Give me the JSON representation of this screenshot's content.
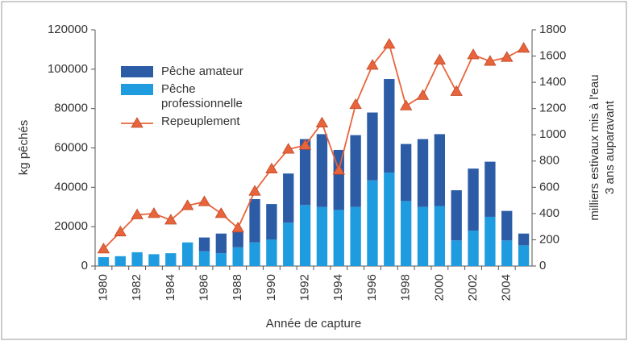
{
  "chart_data": {
    "type": "stacked_bar_line",
    "x_label": "Année de capture",
    "y_label": "kg pêchés",
    "y2_label": [
      "milliers estivaux mis à l'eau",
      "3 ans auparavant"
    ],
    "categories": [
      "1980",
      null,
      "1982",
      null,
      "1984",
      null,
      "1986",
      null,
      "1988",
      null,
      "1990",
      null,
      "1992",
      null,
      "1994",
      null,
      "1996",
      null,
      "1998",
      null,
      "2000",
      null,
      "2002",
      null,
      "2004",
      null
    ],
    "series": [
      {
        "name": "Pêche professionnelle",
        "color": "#1f9be0",
        "values": [
          4500,
          5000,
          7000,
          6000,
          6500,
          12000,
          7500,
          6500,
          9500,
          12000,
          13500,
          22000,
          31000,
          30000,
          28500,
          30000,
          43500,
          47500,
          33000,
          30000,
          30500,
          13000,
          18000,
          25000,
          13000,
          10500
        ]
      },
      {
        "name": "Pêche amateur",
        "color": "#2c5ca6",
        "values": [
          0,
          0,
          0,
          0,
          0,
          0,
          7000,
          10000,
          8000,
          22000,
          18000,
          25000,
          33500,
          37000,
          30500,
          36500,
          34500,
          47500,
          29000,
          34500,
          36500,
          25500,
          31500,
          28000,
          15000,
          6000
        ]
      },
      {
        "name": "Repeuplement",
        "color": "#e8643c",
        "axis": "y2",
        "values": [
          130,
          260,
          390,
          400,
          350,
          460,
          490,
          400,
          290,
          570,
          740,
          890,
          920,
          1090,
          730,
          1230,
          1530,
          1690,
          1220,
          1300,
          1570,
          1330,
          1610,
          1560,
          1590,
          1660
        ]
      }
    ],
    "ylim": [
      0,
      120000
    ],
    "yticks": [
      0,
      20000,
      40000,
      60000,
      80000,
      100000,
      120000
    ],
    "y2lim": [
      0,
      1800
    ],
    "y2ticks": [
      0,
      200,
      400,
      600,
      800,
      1000,
      1200,
      1400,
      1600,
      1800
    ]
  }
}
